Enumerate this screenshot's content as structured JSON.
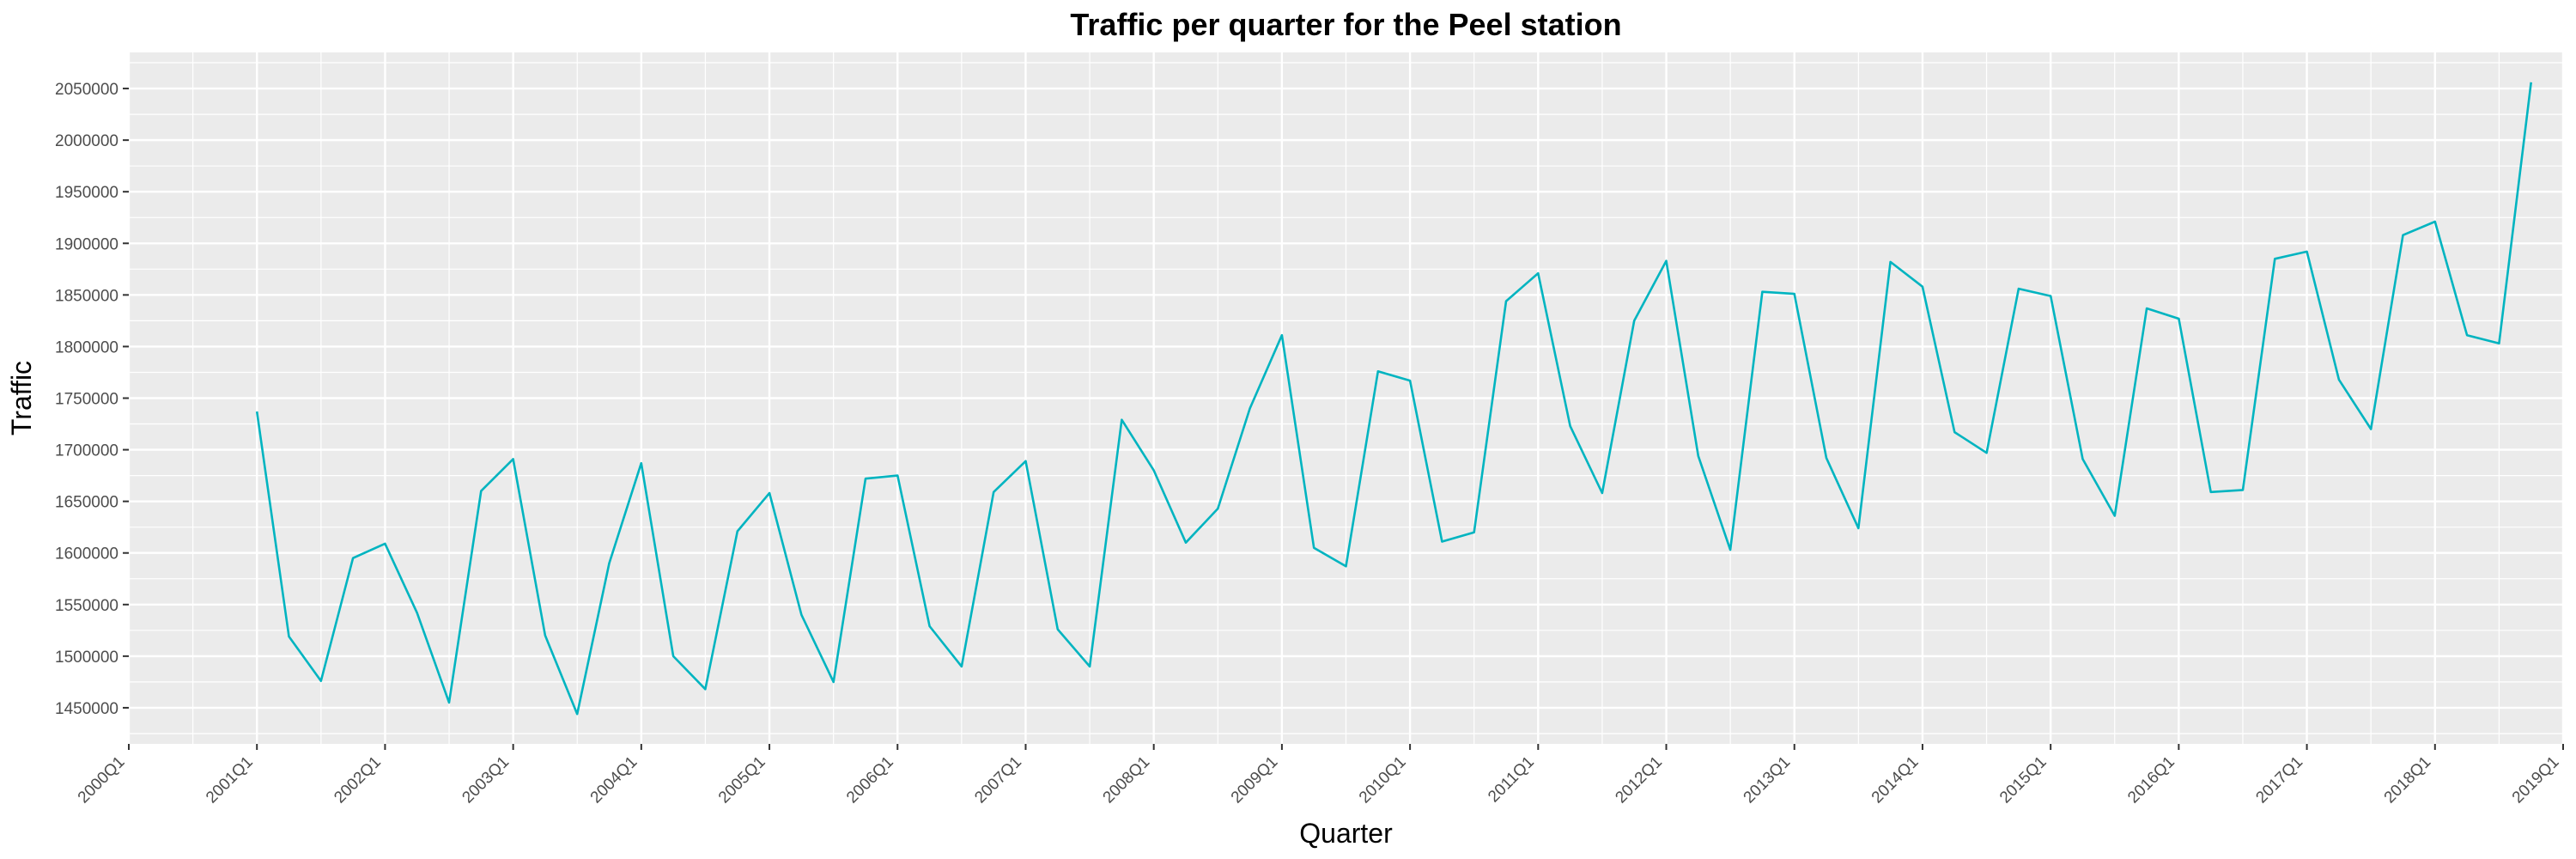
{
  "chart_data": {
    "type": "line",
    "title": "Traffic per quarter for the Peel station",
    "xlabel": "Quarter",
    "ylabel": "Traffic",
    "x_ticks": [
      "2000Q1",
      "2001Q1",
      "2002Q1",
      "2003Q1",
      "2004Q1",
      "2005Q1",
      "2006Q1",
      "2007Q1",
      "2008Q1",
      "2009Q1",
      "2010Q1",
      "2011Q1",
      "2012Q1",
      "2013Q1",
      "2014Q1",
      "2015Q1",
      "2016Q1",
      "2017Q1",
      "2018Q1",
      "2019Q1"
    ],
    "y_ticks": [
      1450000,
      1500000,
      1550000,
      1600000,
      1650000,
      1700000,
      1750000,
      1800000,
      1850000,
      1900000,
      1950000,
      2000000,
      2050000
    ],
    "xlim": [
      2000.0,
      2019.0
    ],
    "ylim": [
      1415000,
      2085000
    ],
    "grid": true,
    "legend": "none",
    "line_color": "#00B4C0",
    "panel_color": "#EBEBEB",
    "grid_color": "#FFFFFF",
    "series": [
      {
        "x": [
          2001.0,
          2001.25,
          2001.5,
          2001.75,
          2002.0,
          2002.25,
          2002.5,
          2002.75,
          2003.0,
          2003.25,
          2003.5,
          2003.75,
          2004.0,
          2004.25,
          2004.5,
          2004.75,
          2005.0,
          2005.25,
          2005.5,
          2005.75,
          2006.0,
          2006.25,
          2006.5,
          2006.75,
          2007.0,
          2007.25,
          2007.5,
          2007.75,
          2008.0,
          2008.25,
          2008.5,
          2008.75,
          2009.0,
          2009.25,
          2009.5,
          2009.75,
          2010.0,
          2010.25,
          2010.5,
          2010.75,
          2011.0,
          2011.25,
          2011.5,
          2011.75,
          2012.0,
          2012.25,
          2012.5,
          2012.75,
          2013.0,
          2013.25,
          2013.5,
          2013.75,
          2014.0,
          2014.25,
          2014.5,
          2014.75,
          2015.0,
          2015.25,
          2015.5,
          2015.75,
          2016.0,
          2016.25,
          2016.5,
          2016.75,
          2017.0,
          2017.25,
          2017.5,
          2017.75,
          2018.0,
          2018.25,
          2018.5,
          2018.75
        ],
        "values": [
          1737000,
          1519000,
          1476000,
          1595000,
          1609000,
          1542000,
          1455000,
          1660000,
          1691000,
          1520000,
          1444000,
          1590000,
          1687000,
          1500000,
          1468000,
          1621000,
          1658000,
          1540000,
          1475000,
          1672000,
          1675000,
          1529000,
          1490000,
          1659000,
          1689000,
          1526000,
          1490000,
          1729000,
          1680000,
          1610000,
          1643000,
          1740000,
          1811000,
          1605000,
          1587000,
          1776000,
          1767000,
          1611000,
          1620000,
          1844000,
          1871000,
          1723000,
          1658000,
          1825000,
          1883000,
          1694000,
          1603000,
          1853000,
          1851000,
          1692000,
          1624000,
          1882000,
          1858000,
          1717000,
          1697000,
          1856000,
          1849000,
          1691000,
          1636000,
          1837000,
          1827000,
          1659000,
          1661000,
          1885000,
          1892000,
          1768000,
          1720000,
          1908000,
          1921000,
          1811000,
          1803000,
          2056000
        ]
      }
    ]
  }
}
